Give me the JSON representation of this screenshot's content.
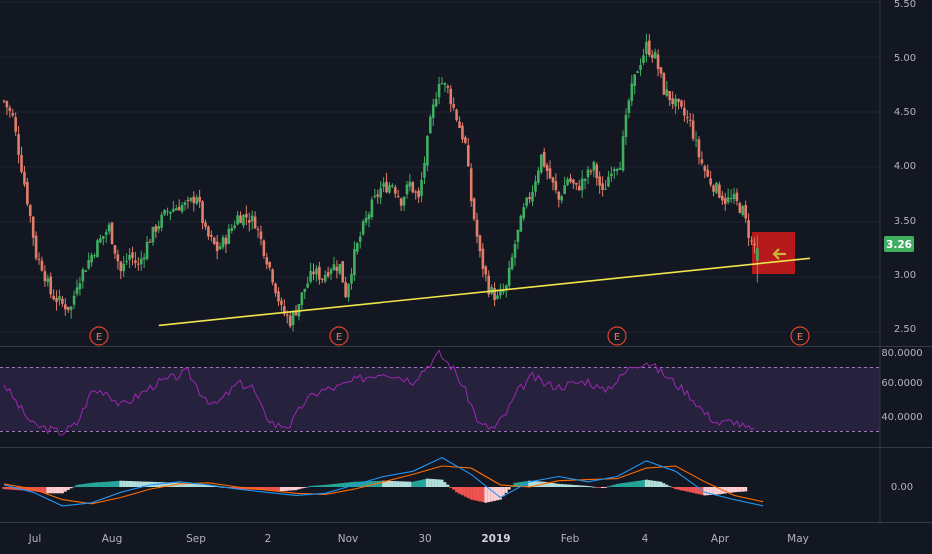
{
  "chart_data": [
    {
      "type": "candlestick",
      "panel": "price",
      "y_ticks": [
        "5.50",
        "5.00",
        "4.50",
        "4.00",
        "3.50",
        "3.00",
        "2.50"
      ],
      "ylim": [
        2.4,
        5.5
      ],
      "x_ticks": [
        "Jul",
        "Aug",
        "Sep",
        "2",
        "Nov",
        "30",
        "2019",
        "Feb",
        "4",
        "Apr",
        "May"
      ],
      "last_price_label": "3.26",
      "earnings_markers": [
        "E",
        "E",
        "E",
        "E"
      ],
      "trendline": {
        "from": [
          5.3,
          2.56
        ],
        "to": [
          27.6,
          3.17
        ],
        "color": "#f0e54b"
      },
      "highlight_box_color": "#d41a1a",
      "arrow_icon": "left-arrow-icon",
      "up_color": "#3fae61",
      "down_color": "#e27d6a",
      "closes": [
        [
          0,
          4.6
        ],
        [
          0.3,
          4.45
        ],
        [
          0.6,
          4.0
        ],
        [
          0.9,
          3.55
        ],
        [
          1.1,
          3.2
        ],
        [
          1.3,
          3.1
        ],
        [
          1.6,
          2.85
        ],
        [
          2.0,
          2.75
        ],
        [
          2.3,
          2.72
        ],
        [
          2.5,
          2.95
        ],
        [
          2.8,
          3.1
        ],
        [
          3.2,
          3.3
        ],
        [
          3.6,
          3.45
        ],
        [
          4.0,
          3.05
        ],
        [
          4.3,
          3.2
        ],
        [
          4.6,
          3.1
        ],
        [
          4.9,
          3.3
        ],
        [
          5.2,
          3.45
        ],
        [
          5.6,
          3.6
        ],
        [
          6.0,
          3.65
        ],
        [
          6.3,
          3.65
        ],
        [
          6.6,
          3.75
        ],
        [
          6.9,
          3.4
        ],
        [
          7.3,
          3.25
        ],
        [
          7.6,
          3.35
        ],
        [
          8.0,
          3.55
        ],
        [
          8.3,
          3.55
        ],
        [
          8.6,
          3.5
        ],
        [
          8.9,
          3.25
        ],
        [
          9.2,
          3.0
        ],
        [
          9.5,
          2.7
        ],
        [
          9.8,
          2.6
        ],
        [
          10.0,
          2.7
        ],
        [
          10.3,
          2.9
        ],
        [
          10.6,
          3.05
        ],
        [
          10.9,
          3.0
        ],
        [
          11.2,
          3.1
        ],
        [
          11.5,
          3.1
        ],
        [
          11.7,
          2.85
        ],
        [
          12.0,
          3.2
        ],
        [
          12.3,
          3.45
        ],
        [
          12.6,
          3.65
        ],
        [
          12.9,
          3.8
        ],
        [
          13.3,
          3.85
        ],
        [
          13.6,
          3.7
        ],
        [
          13.9,
          3.85
        ],
        [
          14.2,
          3.7
        ],
        [
          14.6,
          4.4
        ],
        [
          14.9,
          4.8
        ],
        [
          15.2,
          4.7
        ],
        [
          15.5,
          4.45
        ],
        [
          15.8,
          4.2
        ],
        [
          16.0,
          3.7
        ],
        [
          16.3,
          3.2
        ],
        [
          16.6,
          2.9
        ],
        [
          16.9,
          2.8
        ],
        [
          17.2,
          2.9
        ],
        [
          17.5,
          3.3
        ],
        [
          17.8,
          3.6
        ],
        [
          18.1,
          3.8
        ],
        [
          18.4,
          4.1
        ],
        [
          18.7,
          3.9
        ],
        [
          19.0,
          3.7
        ],
        [
          19.3,
          3.9
        ],
        [
          19.6,
          3.8
        ],
        [
          19.9,
          3.9
        ],
        [
          20.2,
          4.0
        ],
        [
          20.5,
          3.75
        ],
        [
          20.8,
          4.0
        ],
        [
          21.1,
          4.05
        ],
        [
          21.4,
          4.6
        ],
        [
          21.7,
          4.9
        ],
        [
          22.0,
          5.1
        ],
        [
          22.3,
          5.0
        ],
        [
          22.6,
          4.7
        ],
        [
          22.9,
          4.6
        ],
        [
          23.2,
          4.5
        ],
        [
          23.5,
          4.4
        ],
        [
          23.8,
          4.1
        ],
        [
          24.1,
          3.9
        ],
        [
          24.4,
          3.8
        ],
        [
          24.7,
          3.7
        ],
        [
          25.0,
          3.7
        ],
        [
          25.3,
          3.6
        ],
        [
          25.6,
          3.3
        ],
        [
          25.8,
          3.26
        ]
      ]
    },
    {
      "type": "line",
      "panel": "rsi",
      "y_ticks": [
        "80.0000",
        "60.0000",
        "40.0000"
      ],
      "ylim": [
        20,
        82
      ],
      "band": [
        30,
        70
      ],
      "line_color": "#9c27b0",
      "values": [
        [
          0,
          60
        ],
        [
          0.5,
          45
        ],
        [
          1.0,
          32
        ],
        [
          1.4,
          30
        ],
        [
          2.0,
          27
        ],
        [
          2.5,
          33
        ],
        [
          3.0,
          55
        ],
        [
          3.5,
          55
        ],
        [
          4.0,
          45
        ],
        [
          4.6,
          52
        ],
        [
          5.2,
          60
        ],
        [
          5.8,
          64
        ],
        [
          6.3,
          68
        ],
        [
          6.7,
          55
        ],
        [
          7.2,
          45
        ],
        [
          7.6,
          52
        ],
        [
          8.0,
          60
        ],
        [
          8.5,
          58
        ],
        [
          8.9,
          40
        ],
        [
          9.3,
          32
        ],
        [
          9.8,
          32
        ],
        [
          10.3,
          48
        ],
        [
          10.8,
          55
        ],
        [
          11.5,
          58
        ],
        [
          12.0,
          62
        ],
        [
          12.5,
          65
        ],
        [
          13.0,
          68
        ],
        [
          13.5,
          65
        ],
        [
          14.0,
          62
        ],
        [
          14.5,
          72
        ],
        [
          14.9,
          80
        ],
        [
          15.4,
          70
        ],
        [
          15.8,
          55
        ],
        [
          16.3,
          32
        ],
        [
          16.8,
          30
        ],
        [
          17.2,
          40
        ],
        [
          17.6,
          55
        ],
        [
          18.1,
          65
        ],
        [
          18.5,
          60
        ],
        [
          19.0,
          58
        ],
        [
          19.5,
          60
        ],
        [
          20.0,
          62
        ],
        [
          20.5,
          55
        ],
        [
          21.0,
          62
        ],
        [
          21.5,
          72
        ],
        [
          22.0,
          75
        ],
        [
          22.5,
          68
        ],
        [
          23.0,
          60
        ],
        [
          23.5,
          52
        ],
        [
          24.0,
          40
        ],
        [
          24.5,
          33
        ],
        [
          25.0,
          35
        ],
        [
          25.4,
          30
        ],
        [
          25.8,
          27
        ]
      ]
    },
    {
      "type": "histogram",
      "panel": "macd",
      "y_ticks": [
        "0.00"
      ],
      "ylim": [
        -0.3,
        0.3
      ],
      "macd_color": "#2196f3",
      "signal_color": "#ff6d00",
      "hist_pos_colors": [
        "#26a69a",
        "#b2dfdb"
      ],
      "hist_neg_colors": [
        "#ef5350",
        "#ffcdd2"
      ],
      "macd": [
        [
          0,
          0.02
        ],
        [
          1,
          -0.05
        ],
        [
          2,
          -0.18
        ],
        [
          3,
          -0.15
        ],
        [
          4,
          -0.05
        ],
        [
          5,
          0.02
        ],
        [
          6,
          0.05
        ],
        [
          7,
          0.02
        ],
        [
          8,
          -0.02
        ],
        [
          9,
          -0.05
        ],
        [
          10,
          -0.08
        ],
        [
          11,
          -0.06
        ],
        [
          12,
          0.02
        ],
        [
          13,
          0.1
        ],
        [
          14,
          0.15
        ],
        [
          15,
          0.28
        ],
        [
          16,
          0.12
        ],
        [
          17,
          -0.1
        ],
        [
          18,
          0.05
        ],
        [
          19,
          0.1
        ],
        [
          20,
          0.05
        ],
        [
          21,
          0.1
        ],
        [
          22,
          0.25
        ],
        [
          23,
          0.15
        ],
        [
          24,
          -0.05
        ],
        [
          25,
          -0.12
        ],
        [
          26,
          -0.18
        ]
      ],
      "signal": [
        [
          0,
          0.03
        ],
        [
          1,
          -0.02
        ],
        [
          2,
          -0.12
        ],
        [
          3,
          -0.16
        ],
        [
          4,
          -0.1
        ],
        [
          5,
          -0.02
        ],
        [
          6,
          0.03
        ],
        [
          7,
          0.04
        ],
        [
          8,
          0.0
        ],
        [
          9,
          -0.03
        ],
        [
          10,
          -0.06
        ],
        [
          11,
          -0.07
        ],
        [
          12,
          -0.02
        ],
        [
          13,
          0.05
        ],
        [
          14,
          0.12
        ],
        [
          15,
          0.2
        ],
        [
          16,
          0.18
        ],
        [
          17,
          0.02
        ],
        [
          18,
          0.0
        ],
        [
          19,
          0.06
        ],
        [
          20,
          0.07
        ],
        [
          21,
          0.08
        ],
        [
          22,
          0.18
        ],
        [
          23,
          0.2
        ],
        [
          24,
          0.05
        ],
        [
          25,
          -0.08
        ],
        [
          26,
          -0.14
        ]
      ],
      "histogram": [
        [
          0,
          -0.02
        ],
        [
          1,
          -0.04
        ],
        [
          1.5,
          -0.06
        ],
        [
          2,
          -0.06
        ],
        [
          2.5,
          0.02
        ],
        [
          3,
          0.04
        ],
        [
          3.5,
          0.05
        ],
        [
          4,
          0.06
        ],
        [
          5,
          0.05
        ],
        [
          6,
          0.04
        ],
        [
          7,
          0.02
        ],
        [
          8,
          -0.02
        ],
        [
          9,
          -0.03
        ],
        [
          9.5,
          -0.04
        ],
        [
          10,
          -0.03
        ],
        [
          10.5,
          0.01
        ],
        [
          11,
          0.02
        ],
        [
          12,
          0.05
        ],
        [
          13,
          0.06
        ],
        [
          14,
          0.05
        ],
        [
          14.5,
          0.08
        ],
        [
          15,
          0.07
        ],
        [
          15.5,
          -0.05
        ],
        [
          16,
          -0.12
        ],
        [
          16.5,
          -0.15
        ],
        [
          17,
          -0.12
        ],
        [
          17.5,
          0.04
        ],
        [
          18,
          0.06
        ],
        [
          18.5,
          0.05
        ],
        [
          19,
          0.03
        ],
        [
          20,
          0.01
        ],
        [
          20.5,
          -0.01
        ],
        [
          21,
          0.03
        ],
        [
          21.5,
          0.05
        ],
        [
          22,
          0.07
        ],
        [
          22.5,
          0.05
        ],
        [
          23,
          -0.02
        ],
        [
          23.5,
          -0.05
        ],
        [
          24,
          -0.08
        ],
        [
          24.5,
          -0.07
        ],
        [
          25,
          -0.05
        ],
        [
          25.5,
          -0.04
        ]
      ]
    }
  ]
}
